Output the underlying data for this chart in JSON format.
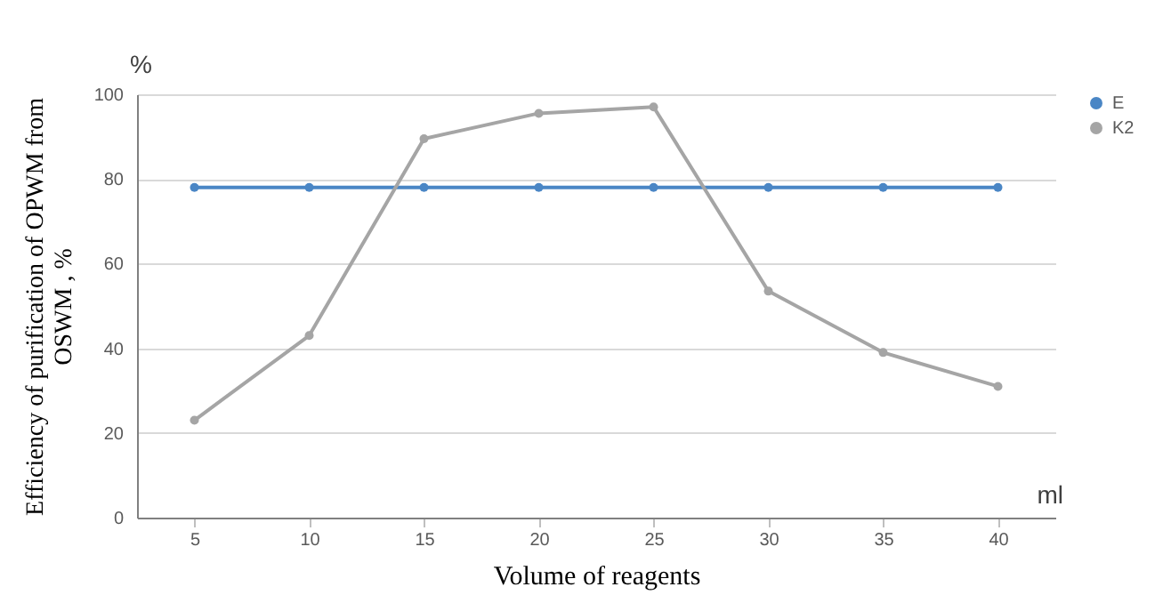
{
  "chart_data": {
    "type": "line",
    "xlabel": "Volume of reagents",
    "ylabel": "Efficiency of purification of OPWM  from OSWM , %",
    "categories": [
      "5",
      "10",
      "15",
      "20",
      "25",
      "30",
      "35",
      "40"
    ],
    "series": [
      {
        "name": "E",
        "color": "#4a86c5",
        "values": [
          78,
          78,
          78,
          78,
          78,
          78,
          78,
          78
        ]
      },
      {
        "name": "K2",
        "color": "#a5a5a5",
        "values": [
          23,
          43,
          89.5,
          95.5,
          97,
          53.5,
          39,
          31
        ]
      }
    ],
    "ylim": [
      0,
      100
    ],
    "yticks": [
      0,
      20,
      40,
      60,
      80,
      100
    ],
    "grid": "y",
    "legend": "right",
    "marker": "circle",
    "line_style": "solid",
    "annotations": [
      "%",
      "ml"
    ]
  }
}
